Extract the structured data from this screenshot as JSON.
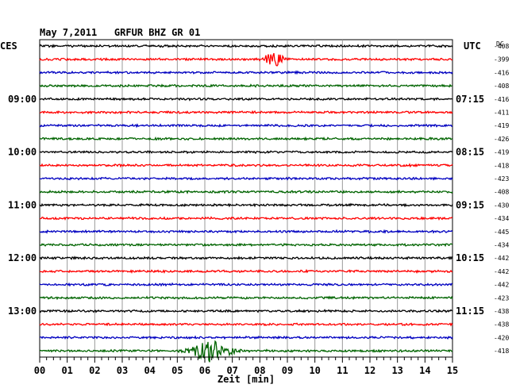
{
  "chart_data": {
    "type": "helicorder",
    "title": "May 7,2011   GRFUR BHZ GR 01",
    "left_timezone": "CES",
    "right_timezone": "UTC",
    "dc_header": "DC",
    "xlabel": "Zeit [min]",
    "xlim": [
      0,
      15
    ],
    "x_ticks": [
      "00",
      "01",
      "02",
      "03",
      "04",
      "05",
      "06",
      "07",
      "08",
      "09",
      "10",
      "11",
      "12",
      "13",
      "14",
      "15"
    ],
    "row_colors": [
      "#000000",
      "#ff0000",
      "#0000c0",
      "#006400"
    ],
    "left_hour_labels": [
      {
        "row": 4,
        "text": "09:00"
      },
      {
        "row": 8,
        "text": "10:00"
      },
      {
        "row": 12,
        "text": "11:00"
      },
      {
        "row": 16,
        "text": "12:00"
      },
      {
        "row": 20,
        "text": "13:00"
      }
    ],
    "right_hour_labels": [
      {
        "row": 4,
        "text": "07:15"
      },
      {
        "row": 8,
        "text": "08:15"
      },
      {
        "row": 12,
        "text": "09:15"
      },
      {
        "row": 16,
        "text": "10:15"
      },
      {
        "row": 20,
        "text": "11:15"
      }
    ],
    "dc_values": [
      "-408",
      "-399",
      "-416",
      "-408",
      "-416",
      "-411",
      "-419",
      "-426",
      "-419",
      "-418",
      "-423",
      "-408",
      "-430",
      "-434",
      "-445",
      "-434",
      "-442",
      "-442",
      "-442",
      "-423",
      "-438",
      "-438",
      "-420",
      "-418"
    ],
    "events": [
      {
        "row": 1,
        "minute": 8.5,
        "amplitude": "large",
        "color": "#ff0000"
      },
      {
        "row": 23,
        "minute": 6.2,
        "amplitude": "very large",
        "color": "#006400"
      }
    ]
  }
}
